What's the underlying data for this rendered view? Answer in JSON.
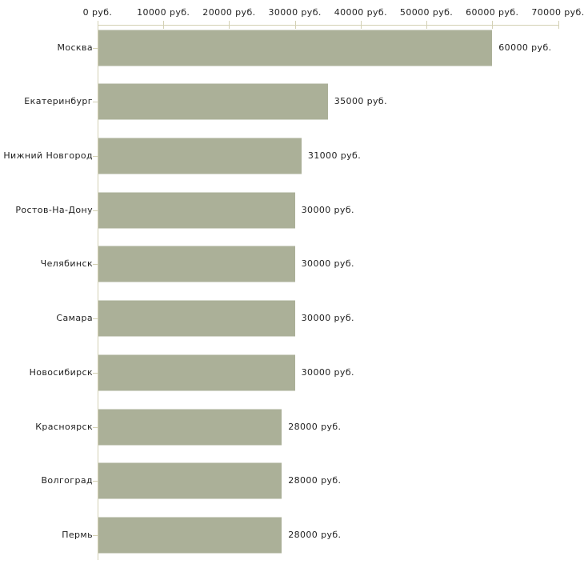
{
  "chart_data": {
    "type": "bar",
    "orientation": "horizontal",
    "title": "",
    "xlabel": "",
    "ylabel": "",
    "unit": "руб.",
    "xlim": [
      0,
      70000
    ],
    "grid": false,
    "legend": false,
    "categories": [
      "Москва",
      "Екатеринбург",
      "Нижний Новгород",
      "Ростов-На-Дону",
      "Челябинск",
      "Самара",
      "Новосибирск",
      "Красноярск",
      "Волгоград",
      "Пермь"
    ],
    "values": [
      60000,
      35000,
      31000,
      30000,
      30000,
      30000,
      30000,
      28000,
      28000,
      28000
    ],
    "value_labels": [
      "60000 руб.",
      "35000 руб.",
      "31000 руб.",
      "30000 руб.",
      "30000 руб.",
      "30000 руб.",
      "30000 руб.",
      "28000 руб.",
      "28000 руб.",
      "28000 руб."
    ],
    "x_ticks": [
      0,
      10000,
      20000,
      30000,
      40000,
      50000,
      60000,
      70000
    ],
    "x_tick_labels": [
      "0 руб.",
      "10000 руб.",
      "20000 руб.",
      "30000 руб.",
      "40000 руб.",
      "50000 руб.",
      "60000 руб.",
      "70000 руб."
    ],
    "colors": {
      "bar": "#abb098",
      "axis": "#d3d0b4",
      "text": "#1f1f1f",
      "background": "#ffffff"
    }
  }
}
